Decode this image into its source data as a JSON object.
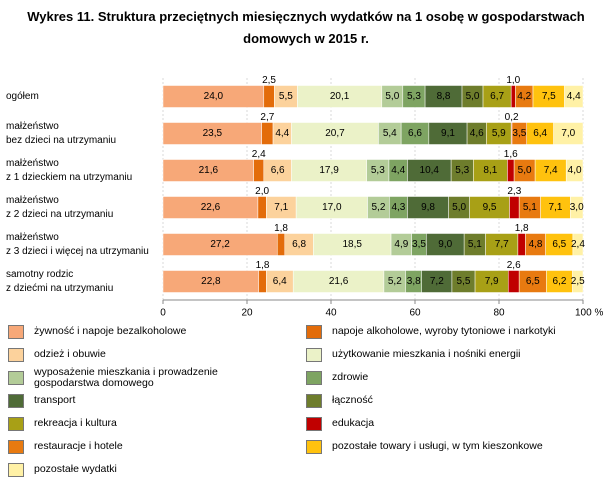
{
  "chart_data": {
    "type": "stacked-bar-horizontal",
    "title": "Wykres 11. Struktura przeciętnych miesięcznych wydatków na 1 osobę w gospodarstwach domowych w 2015 r.",
    "categories": [
      [
        "ogółem"
      ],
      [
        "małżeństwo",
        "bez dzieci na utrzymaniu"
      ],
      [
        "małżeństwo",
        "z 1 dzieckiem na utrzymaniu"
      ],
      [
        "małżeństwo",
        "z 2 dzieci na utrzymaniu"
      ],
      [
        "małżeństwo",
        "z 3 dzieci i więcej na utrzymaniu"
      ],
      [
        "samotny rodzic",
        "z dziećmi na utrzymaniu"
      ]
    ],
    "xlim": [
      0,
      100
    ],
    "xticks": [
      0,
      20,
      40,
      60,
      80,
      {
        "value": 100,
        "label": "100 %"
      }
    ],
    "grid": true,
    "series": [
      {
        "name": "żywność i napoje bezalkoholowe",
        "color": "#f7a878",
        "values": [
          24.0,
          23.5,
          21.6,
          22.6,
          27.2,
          22.8
        ],
        "value_labels": [
          "24,0",
          "23,5",
          "21,6",
          "22,6",
          "27,2",
          "22,8"
        ]
      },
      {
        "name": "napoje alkoholowe, wyroby tytoniowe i narkotyki",
        "color": "#e36c0a",
        "values": [
          2.5,
          2.7,
          2.4,
          2.0,
          1.8,
          1.8
        ],
        "value_labels": [
          "2,5",
          "2,7",
          "2,4",
          "2,0",
          "1,8",
          "1,8"
        ],
        "labels_above": true
      },
      {
        "name": "odzież i obuwie",
        "color": "#fcd29c",
        "values": [
          5.5,
          4.4,
          6.6,
          7.1,
          6.8,
          6.4
        ],
        "value_labels": [
          "5,5",
          "4,4",
          "6,6",
          "7,1",
          "6,8",
          "6,4"
        ]
      },
      {
        "name": "użytkowanie mieszkania i nośniki energii",
        "color": "#ebf2c8",
        "values": [
          20.1,
          20.7,
          17.9,
          17.0,
          18.5,
          21.6
        ],
        "value_labels": [
          "20,1",
          "20,7",
          "17,9",
          "17,0",
          "18,5",
          "21,6"
        ]
      },
      {
        "name": "wyposażenie mieszkania i prowadzenie gospodarstwa domowego",
        "color": "#b3cc98",
        "values": [
          5.0,
          5.4,
          5.3,
          5.2,
          4.9,
          5.2
        ],
        "value_labels": [
          "5,0",
          "5,4",
          "5,3",
          "5,2",
          "4,9",
          "5,2"
        ]
      },
      {
        "name": "zdrowie",
        "color": "#7ea462",
        "values": [
          5.3,
          6.6,
          4.4,
          4.3,
          3.5,
          3.8
        ],
        "value_labels": [
          "5,3",
          "6,6",
          "4,4",
          "4,3",
          "3,5",
          "3,8"
        ]
      },
      {
        "name": "transport",
        "color": "#4f6b37",
        "values": [
          8.8,
          9.1,
          10.4,
          9.8,
          9.0,
          7.2
        ],
        "value_labels": [
          "8,8",
          "9,1",
          "10,4",
          "9,8",
          "9,0",
          "7,2"
        ]
      },
      {
        "name": "łączność",
        "color": "#6e7d2c",
        "values": [
          5.0,
          4.6,
          5.3,
          5.0,
          5.1,
          5.5
        ],
        "value_labels": [
          "5,0",
          "4,6",
          "5,3",
          "5,0",
          "5,1",
          "5,5"
        ]
      },
      {
        "name": "rekreacja i kultura",
        "color": "#a8a016",
        "values": [
          6.7,
          5.9,
          8.1,
          9.5,
          7.7,
          7.9
        ],
        "value_labels": [
          "6,7",
          "5,9",
          "8,1",
          "9,5",
          "7,7",
          "7,9"
        ]
      },
      {
        "name": "edukacja",
        "color": "#c00000",
        "values": [
          1.0,
          0.2,
          1.6,
          2.3,
          1.8,
          2.6
        ],
        "value_labels": [
          "1,0",
          "0,2",
          "1,6",
          "2,3",
          "1,8",
          "2,6"
        ],
        "labels_above": true
      },
      {
        "name": "restauracje i hotele",
        "color": "#e87a10",
        "values": [
          4.2,
          3.5,
          5.0,
          5.1,
          4.8,
          6.5
        ],
        "value_labels": [
          "4,2",
          "3,5",
          "5,0",
          "5,1",
          "4,8",
          "6,5"
        ]
      },
      {
        "name": "pozostałe towary i usługi, w tym kieszonkowe",
        "color": "#ffc20e",
        "values": [
          7.5,
          6.4,
          7.4,
          7.1,
          6.5,
          6.2
        ],
        "value_labels": [
          "7,5",
          "6,4",
          "7,4",
          "7,1",
          "6,5",
          "6,2"
        ]
      },
      {
        "name": "pozostałe wydatki",
        "color": "#fff1a6",
        "values": [
          4.4,
          7.0,
          4.0,
          3.0,
          2.4,
          2.5
        ],
        "value_labels": [
          "4,4",
          "7,0",
          "4,0",
          "3,0",
          "2,4",
          "2,5"
        ]
      }
    ]
  }
}
